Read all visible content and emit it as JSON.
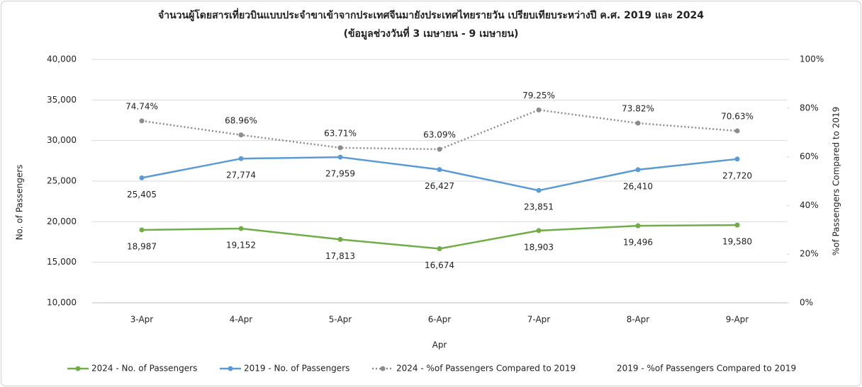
{
  "chart_data": {
    "type": "line",
    "title": "จำนวนผู้โดยสารเที่ยวบินแบบประจำขาเข้าจากประเทศจีนมายังประเทศไทยรายวัน เปรียบเทียบระหว่างปี ค.ศ. 2019 และ 2024",
    "subtitle": "(ข้อมูลช่วงวันที่ 3 เมษายน - 9 เมษายน)",
    "x_label": "Apr",
    "y_label": "No. of Passengers",
    "y2_label": "%of Passengers Compared to 2019",
    "categories": [
      "3-Apr",
      "4-Apr",
      "5-Apr",
      "6-Apr",
      "7-Apr",
      "8-Apr",
      "9-Apr"
    ],
    "ylim": [
      10000,
      40000
    ],
    "yticks": [
      {
        "value": 10000,
        "label": "10,000"
      },
      {
        "value": 15000,
        "label": "15,000"
      },
      {
        "value": 20000,
        "label": "20,000"
      },
      {
        "value": 25000,
        "label": "25,000"
      },
      {
        "value": 30000,
        "label": "30,000"
      },
      {
        "value": 35000,
        "label": "35,000"
      },
      {
        "value": 40000,
        "label": "40,000"
      }
    ],
    "y2lim": [
      0,
      100
    ],
    "y2ticks": [
      {
        "value": 0,
        "label": "0%"
      },
      {
        "value": 20,
        "label": "20%"
      },
      {
        "value": 40,
        "label": "40%"
      },
      {
        "value": 60,
        "label": "60%"
      },
      {
        "value": 80,
        "label": "80%"
      },
      {
        "value": 100,
        "label": "100%"
      }
    ],
    "grid": true,
    "legend": "bottom",
    "series": [
      {
        "name": "2024 - No. of Passengers",
        "color": "#70ad47",
        "axis": "y",
        "label_side": "below",
        "values": [
          18987,
          19152,
          17813,
          16674,
          18903,
          19496,
          19580
        ],
        "value_labels": [
          "18,987",
          "19,152",
          "17,813",
          "16,674",
          "18,903",
          "19,496",
          "19,580"
        ]
      },
      {
        "name": "2019 - No. of Passengers",
        "color": "#5b9bd5",
        "axis": "y",
        "label_side": "below",
        "values": [
          25405,
          27774,
          27959,
          26427,
          23851,
          26410,
          27720
        ],
        "value_labels": [
          "25,405",
          "27,774",
          "27,959",
          "26,427",
          "23,851",
          "26,410",
          "27,720"
        ]
      },
      {
        "name": "2024 - %of Passengers Compared to 2019",
        "color": "#8c8c8c",
        "axis": "y2",
        "dashed": true,
        "label_side": "above",
        "values": [
          74.74,
          68.96,
          63.71,
          63.09,
          79.25,
          73.82,
          70.63
        ],
        "value_labels": [
          "74.74%",
          "68.96%",
          "63.71%",
          "63.09%",
          "79.25%",
          "73.82%",
          "70.63%"
        ]
      },
      {
        "name": "2019 - %of Passengers Compared to 2019",
        "axis": "y2"
      }
    ]
  }
}
